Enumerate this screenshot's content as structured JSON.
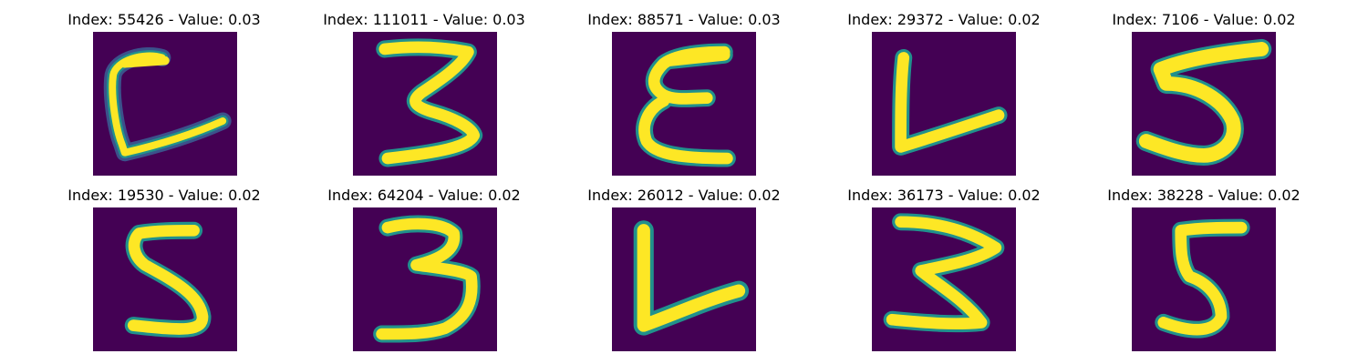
{
  "colors": {
    "background": "#440154",
    "stroke_core": "#fde725",
    "stroke_edge": "#21918c",
    "stroke_outer": "#3b528b"
  },
  "panels": [
    {
      "title": "Index: 55426 - Value: 0.03",
      "glyph": "C-L"
    },
    {
      "title": "Index: 111011 - Value: 0.03",
      "glyph": "3"
    },
    {
      "title": "Index: 88571 - Value: 0.03",
      "glyph": "epsilon"
    },
    {
      "title": "Index: 29372 - Value: 0.02",
      "glyph": "L"
    },
    {
      "title": "Index: 7106 - Value: 0.02",
      "glyph": "5"
    },
    {
      "title": "Index: 19530 - Value: 0.02",
      "glyph": "5"
    },
    {
      "title": "Index: 64204 - Value: 0.02",
      "glyph": "3"
    },
    {
      "title": "Index: 26012 - Value: 0.02",
      "glyph": "L"
    },
    {
      "title": "Index: 36173 - Value: 0.02",
      "glyph": "3"
    },
    {
      "title": "Index: 38228 - Value: 0.02",
      "glyph": "5"
    }
  ]
}
